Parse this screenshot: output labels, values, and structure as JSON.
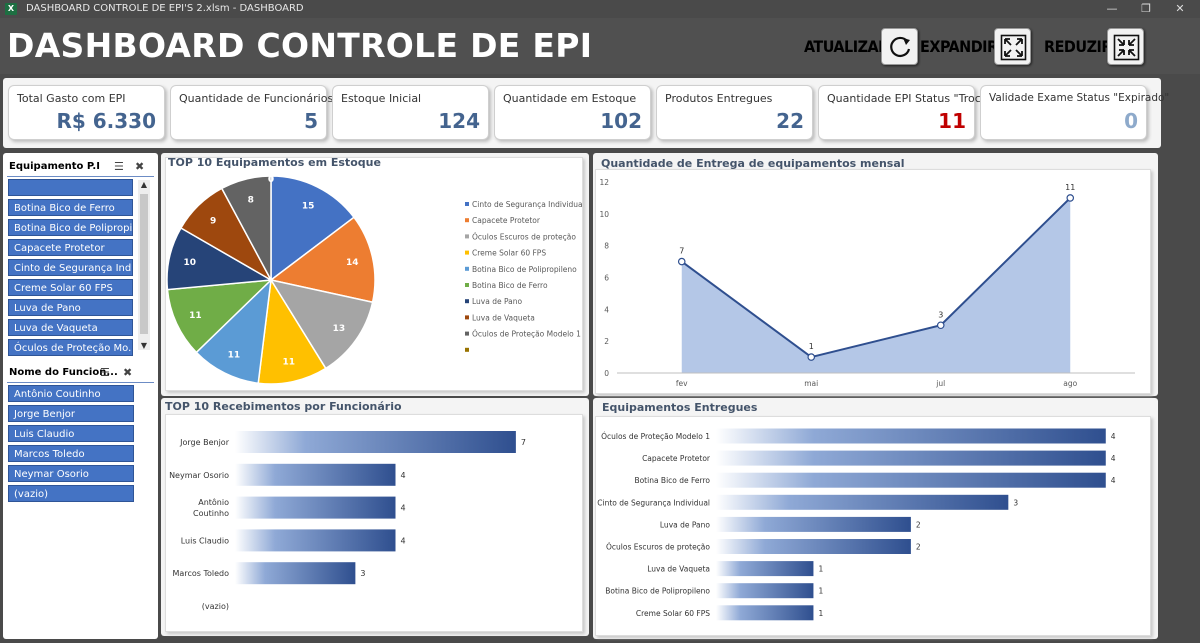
{
  "window": {
    "title": "DASHBOARD CONTROLE DE EPI'S 2.xlsm  -  DASHBOARD",
    "app_icon": "X"
  },
  "header": {
    "title": "DASHBOARD CONTROLE DE EPI",
    "buttons": {
      "refresh_label": "ATUALIZAR",
      "expand_label": "EXPANDIR",
      "reduce_label": "REDUZIR"
    }
  },
  "kpis": [
    {
      "label": "Total Gasto com EPI",
      "value": "R$ 6.330",
      "color": "#44648f"
    },
    {
      "label": "Quantidade de Funcionários",
      "value": "5",
      "color": "#44648f"
    },
    {
      "label": "Estoque Inicial",
      "value": "124",
      "color": "#44648f"
    },
    {
      "label": "Quantidade em Estoque",
      "value": "102",
      "color": "#44648f"
    },
    {
      "label": "Produtos Entregues",
      "value": "22",
      "color": "#44648f"
    },
    {
      "label": "Quantidade EPI Status \"Trocar\"",
      "value": "11",
      "color": "#c00000"
    },
    {
      "label": "Validade Exame Status \"Expirado\"",
      "value": "0",
      "color": "#8eaacb"
    }
  ],
  "slicers": {
    "equipment": {
      "title": "Equipamento P.I",
      "items": [
        "",
        "Botina Bico de Ferro",
        "Botina Bico de Polipropi...",
        "Capacete Protetor",
        "Cinto de Segurança Indi...",
        "Creme Solar 60 FPS",
        "Luva de Pano",
        "Luva de Vaqueta",
        "Óculos de Proteção Mo..."
      ]
    },
    "employee": {
      "title": "Nome do Funcion...",
      "items": [
        "Antônio Coutinho",
        "Jorge Benjor",
        "Luis Claudio",
        "Marcos Toledo",
        "Neymar Osorio",
        "(vazio)"
      ]
    }
  },
  "charts": {
    "pie_title": "TOP 10 Equipamentos em Estoque",
    "line_title": "Quantidade de Entrega de equipamentos mensal",
    "emp_title": "TOP 10 Recebimentos por Funcionário",
    "eq_title": "Equipamentos Entregues"
  },
  "chart_data": [
    {
      "type": "pie",
      "title": "TOP 10 Equipamentos em Estoque",
      "legend_position": "right",
      "slices": [
        {
          "label": "Cinto de Segurança Individual",
          "value": 15,
          "color": "#4472c4"
        },
        {
          "label": "Capacete Protetor",
          "value": 14,
          "color": "#ed7d31"
        },
        {
          "label": "Óculos Escuros de proteção",
          "value": 13,
          "color": "#a5a5a5"
        },
        {
          "label": "Creme Solar 60 FPS",
          "value": 11,
          "color": "#ffc000"
        },
        {
          "label": "Botina Bico de Polipropileno",
          "value": 11,
          "color": "#5b9bd5"
        },
        {
          "label": "Botina Bico de Ferro",
          "value": 11,
          "color": "#70ad47"
        },
        {
          "label": "Luva de Pano",
          "value": 10,
          "color": "#264478"
        },
        {
          "label": "Luva de Vaqueta",
          "value": 9,
          "color": "#9e480e"
        },
        {
          "label": "Óculos de Proteção Modelo 1",
          "value": 8,
          "color": "#636363"
        },
        {
          "label": "",
          "value": 0,
          "color": "#997300"
        }
      ]
    },
    {
      "type": "area",
      "title": "Quantidade de Entrega de equipamentos mensal",
      "x": [
        "fev",
        "mai",
        "jul",
        "ago"
      ],
      "values": [
        7,
        1,
        3,
        11
      ],
      "ylim": [
        0,
        12
      ],
      "yticks": [
        0,
        2,
        4,
        6,
        8,
        10,
        12
      ],
      "color": "#4a6fb5",
      "fill": "#b4c7e7"
    },
    {
      "type": "bar",
      "orientation": "horizontal",
      "title": "TOP 10 Recebimentos por Funcionário",
      "categories": [
        "Jorge Benjor",
        "Neymar Osorio",
        "Antônio Coutinho",
        "Luis Claudio",
        "Marcos Toledo",
        "(vazio)"
      ],
      "values": [
        7,
        4,
        4,
        4,
        3,
        null
      ],
      "xlim": [
        0,
        8
      ]
    },
    {
      "type": "bar",
      "orientation": "horizontal",
      "title": "Equipamentos Entregues",
      "categories": [
        "Óculos de Proteção Modelo 1",
        "Capacete Protetor",
        "Botina Bico de Ferro",
        "Cinto de Segurança Individual",
        "Luva de Pano",
        "Óculos Escuros de proteção",
        "Luva de Vaqueta",
        "Botina Bico de Polipropileno",
        "Creme Solar 60 FPS"
      ],
      "values": [
        4,
        4,
        4,
        3,
        2,
        2,
        1,
        1,
        1
      ],
      "xlim": [
        0,
        4.3
      ]
    }
  ]
}
